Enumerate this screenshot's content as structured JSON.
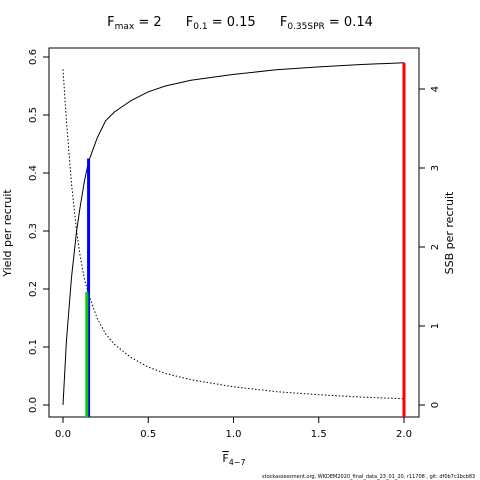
{
  "title": {
    "fmax_label": "F",
    "fmax_sub": "max",
    "fmax_value": " = 2",
    "f01_label": "F",
    "f01_sub": "0.1",
    "f01_value": " = 0.15",
    "fspr_label": "F",
    "fspr_sub": "0.35SPR",
    "fspr_value": " = 0.14"
  },
  "footer": "stockassessment.org, WKDEM2020_final_data_23_01_20, r11708 , git: df0b7c1bcb83",
  "colors": {
    "fmax": "#ff0000",
    "f01": "#0000ff",
    "fspr": "#00cc00",
    "axis": "#000000"
  },
  "chart_data": {
    "type": "line",
    "xlabel": "F",
    "xlabel_sub": "4−7",
    "ylabel": "Yield per recruit",
    "ylabel_right": "SSB per recruit",
    "xlim": [
      0,
      2
    ],
    "ylim": [
      0,
      0.6
    ],
    "ylim_right": [
      0,
      4.3
    ],
    "x_ticks": [
      "0.0",
      "0.5",
      "1.0",
      "1.5",
      "2.0"
    ],
    "y_ticks": [
      "0.0",
      "0.1",
      "0.2",
      "0.3",
      "0.4",
      "0.5",
      "0.6"
    ],
    "y_right_ticks": [
      "0",
      "1",
      "2",
      "3",
      "4"
    ],
    "grid": false,
    "series": [
      {
        "axis": "left",
        "style": "solid",
        "x": [
          0,
          0.02,
          0.05,
          0.08,
          0.1,
          0.125,
          0.15,
          0.2,
          0.25,
          0.3,
          0.4,
          0.5,
          0.6,
          0.75,
          1.0,
          1.25,
          1.5,
          1.75,
          2.0
        ],
        "values": [
          0.0,
          0.11,
          0.22,
          0.3,
          0.34,
          0.385,
          0.42,
          0.46,
          0.49,
          0.505,
          0.525,
          0.54,
          0.55,
          0.56,
          0.57,
          0.578,
          0.583,
          0.587,
          0.59
        ]
      },
      {
        "axis": "right",
        "style": "dotted",
        "x": [
          0,
          0.02,
          0.05,
          0.08,
          0.1,
          0.125,
          0.15,
          0.2,
          0.25,
          0.3,
          0.4,
          0.5,
          0.6,
          0.75,
          1.0,
          1.25,
          1.5,
          1.75,
          2.0
        ],
        "values": [
          4.25,
          3.6,
          2.8,
          2.2,
          1.9,
          1.6,
          1.4,
          1.1,
          0.9,
          0.77,
          0.6,
          0.48,
          0.4,
          0.32,
          0.23,
          0.17,
          0.13,
          0.1,
          0.08
        ]
      }
    ],
    "reference_lines": [
      {
        "name": "Fmax",
        "x": 2.0,
        "y_top": 0.59,
        "color_key": "fmax"
      },
      {
        "name": "F0.1",
        "x": 0.15,
        "y_top": 0.425,
        "color_key": "f01"
      },
      {
        "name": "F0.35SPR",
        "x": 0.14,
        "y_top": 0.195,
        "color_key": "fspr"
      }
    ]
  }
}
